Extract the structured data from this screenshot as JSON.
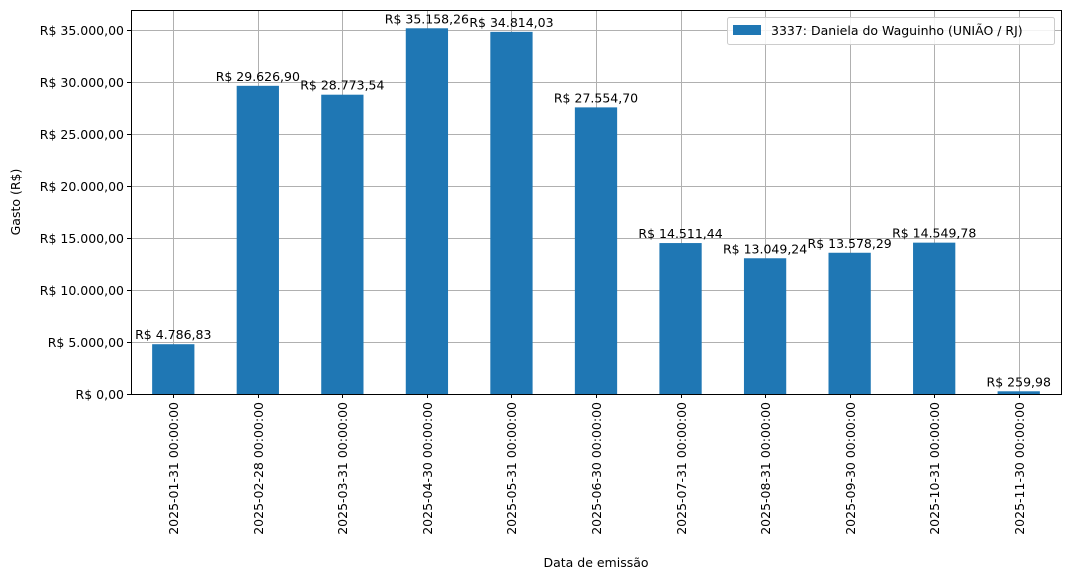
{
  "chart_data": {
    "type": "bar",
    "title": "",
    "xlabel": "Data de emissão",
    "ylabel": "Gasto (R$)",
    "ylim": [
      0,
      36916
    ],
    "grid": true,
    "legend_position": "upper right",
    "categories": [
      "2025-01-31 00:00:00",
      "2025-02-28 00:00:00",
      "2025-03-31 00:00:00",
      "2025-04-30 00:00:00",
      "2025-05-31 00:00:00",
      "2025-06-30 00:00:00",
      "2025-07-31 00:00:00",
      "2025-08-31 00:00:00",
      "2025-09-30 00:00:00",
      "2025-10-31 00:00:00",
      "2025-11-30 00:00:00"
    ],
    "series": [
      {
        "name": "3337: Daniela do Waguinho (UNIÃO / RJ)",
        "color": "#1f77b4",
        "values": [
          4786.83,
          29626.9,
          28773.54,
          35158.26,
          34814.03,
          27554.7,
          14511.44,
          13049.24,
          13578.29,
          14549.78,
          259.98
        ],
        "labels": [
          "R$ 4.786,83",
          "R$ 29.626,90",
          "R$ 28.773,54",
          "R$ 35.158,26",
          "R$ 34.814,03",
          "R$ 27.554,70",
          "R$ 14.511,44",
          "R$ 13.049,24",
          "R$ 13.578,29",
          "R$ 14.549,78",
          "R$ 259,98"
        ]
      }
    ],
    "yticks": [
      0,
      5000,
      10000,
      15000,
      20000,
      25000,
      30000,
      35000
    ],
    "ytick_labels": [
      "R$ 0,00",
      "R$ 5.000,00",
      "R$ 10.000,00",
      "R$ 15.000,00",
      "R$ 20.000,00",
      "R$ 25.000,00",
      "R$ 30.000,00",
      "R$ 35.000,00"
    ]
  }
}
